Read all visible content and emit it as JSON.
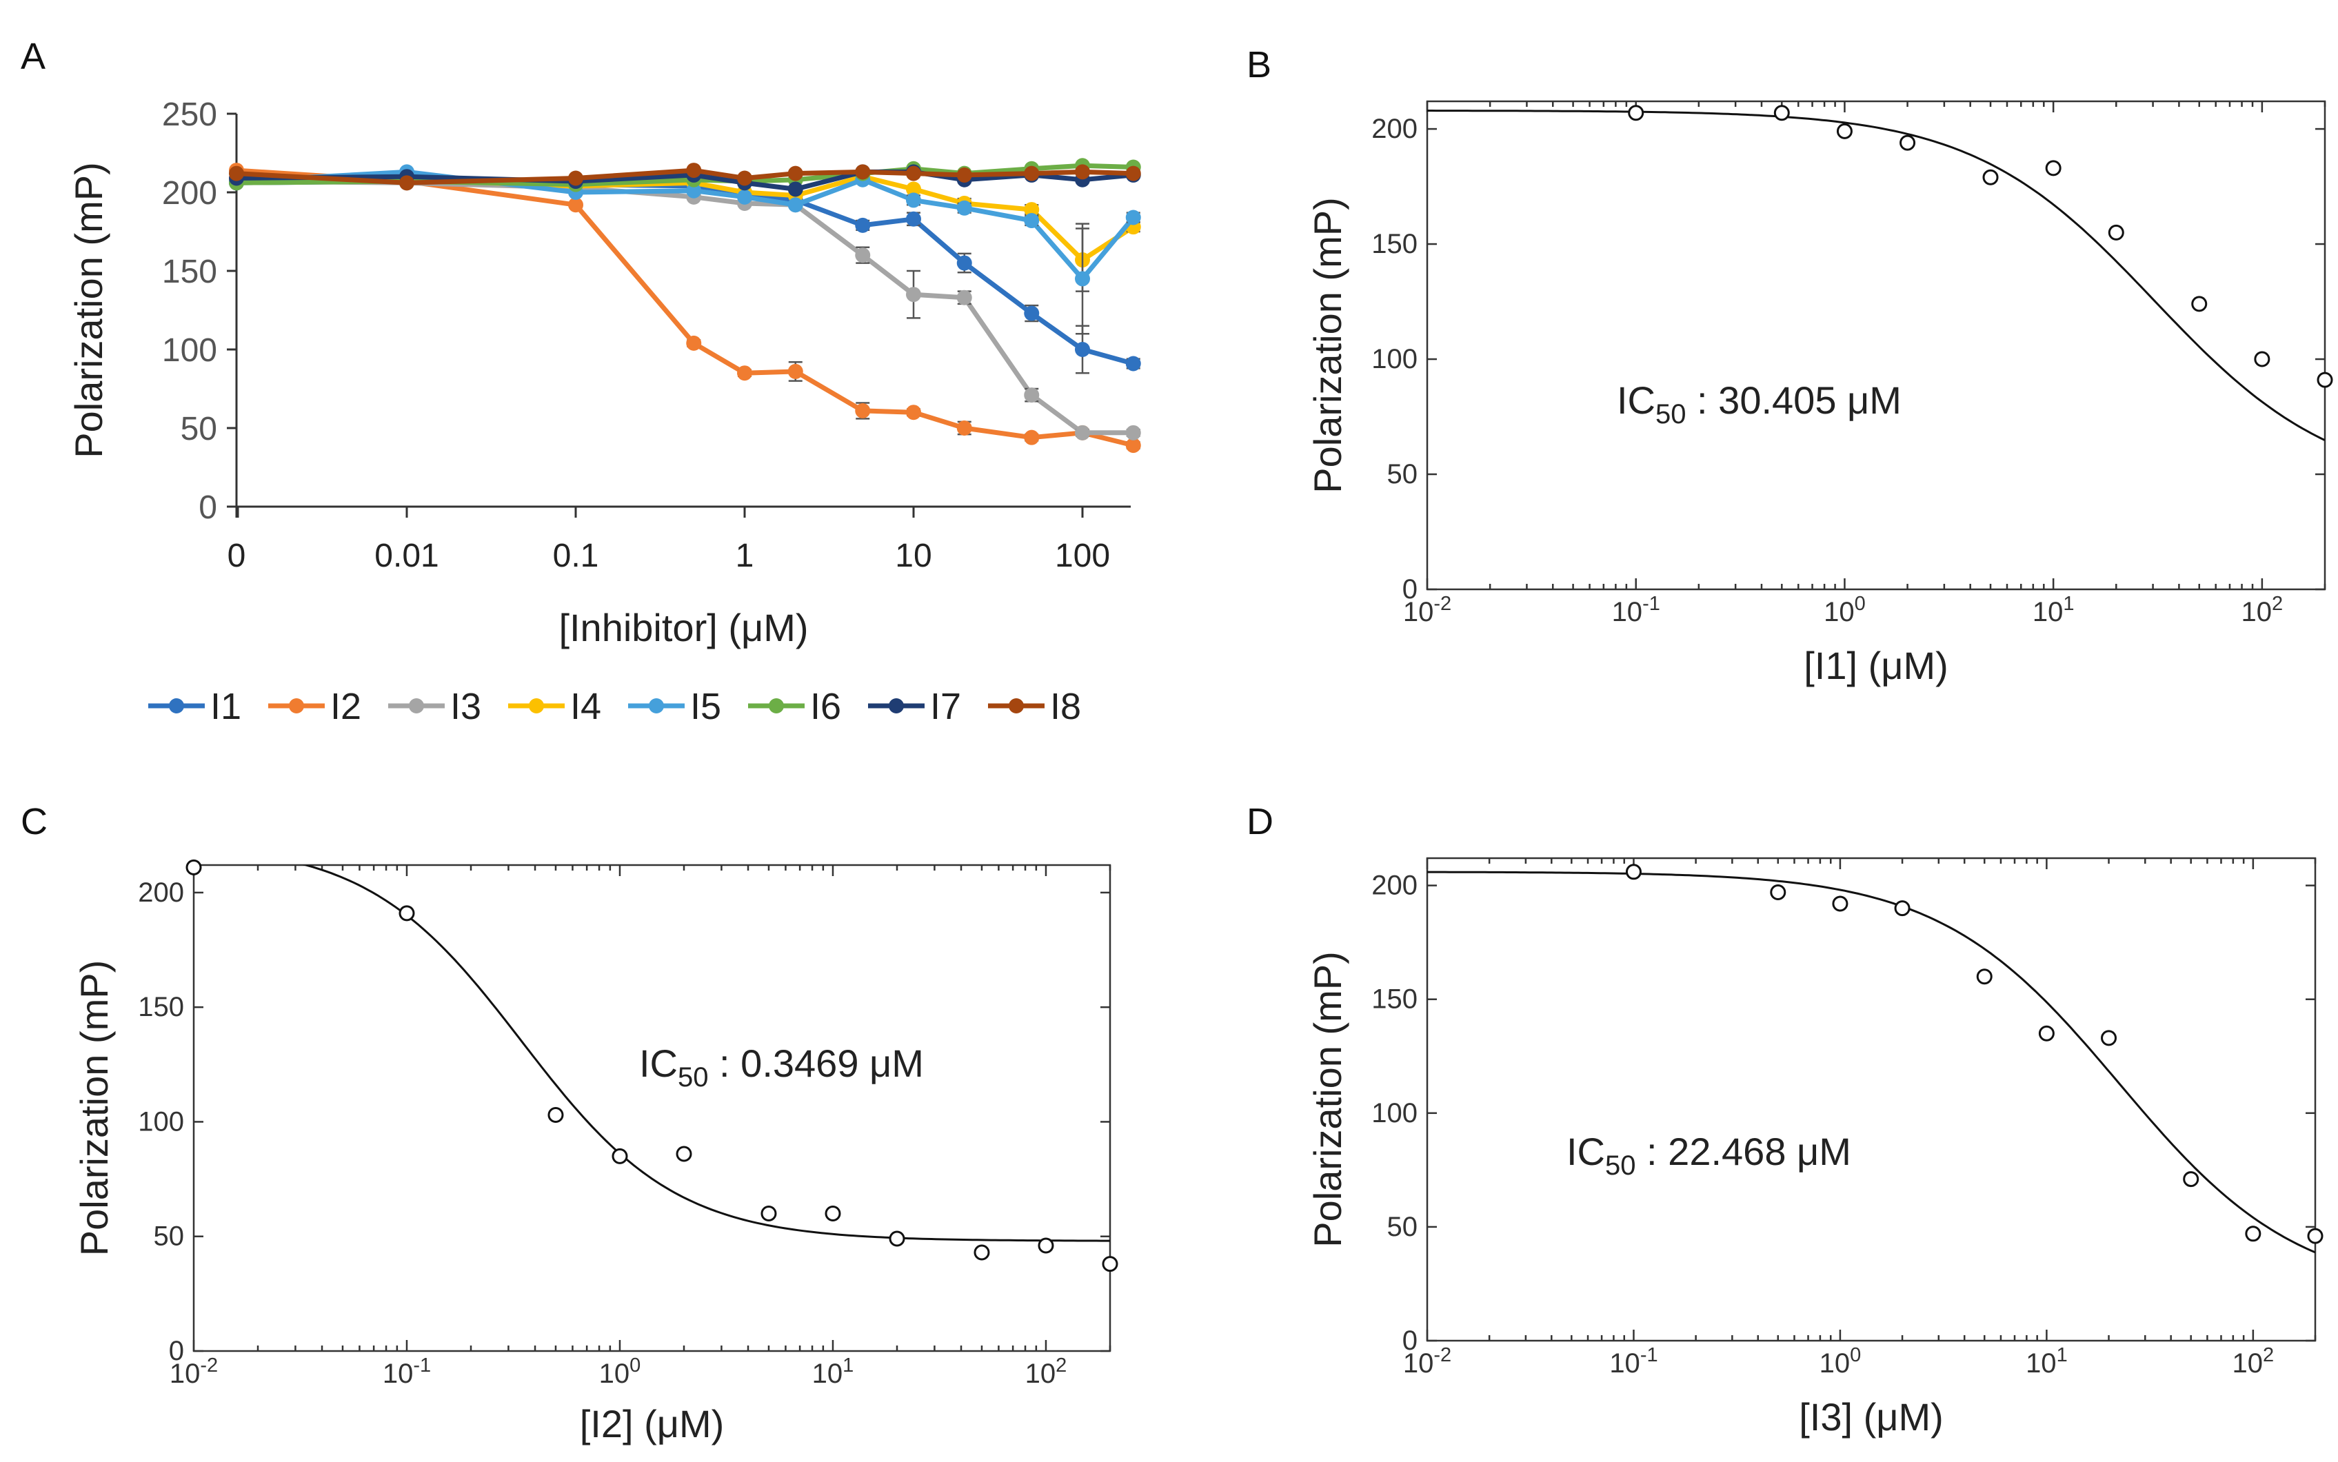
{
  "panels": {
    "a": "A",
    "b": "B",
    "c": "C",
    "d": "D"
  },
  "chart_data": [
    {
      "type": "line",
      "panel": "A",
      "xlabel": "[Inhibitor] (μM)",
      "ylabel": "Polarization (mP)",
      "x_scale": "log-with-zero",
      "x_ticks": [
        "0",
        "0.01",
        "0.1",
        "1",
        "10",
        "100"
      ],
      "x": [
        0,
        0.01,
        0.1,
        0.5,
        1,
        2,
        5,
        10,
        20,
        50,
        100,
        200
      ],
      "ylim": [
        0,
        250
      ],
      "y_ticks": [
        "0",
        "50",
        "100",
        "150",
        "200",
        "250"
      ],
      "legend_position": "bottom",
      "series": [
        {
          "name": "I1",
          "color": "#2f72c0",
          "values": [
            206,
            207,
            205,
            204,
            200,
            195,
            179,
            183,
            155,
            123,
            100,
            91
          ],
          "errors": [
            0,
            0,
            0,
            0,
            0,
            0,
            3,
            4,
            6,
            5,
            15,
            3
          ]
        },
        {
          "name": "I2",
          "color": "#f07c30",
          "values": [
            214,
            207,
            192,
            104,
            85,
            86,
            61,
            60,
            50,
            44,
            47,
            39
          ],
          "errors": [
            0,
            0,
            0,
            2,
            2,
            6,
            5,
            2,
            4,
            2,
            2,
            2
          ]
        },
        {
          "name": "I3",
          "color": "#a5a5a5",
          "values": [
            207,
            206,
            203,
            197,
            193,
            192,
            160,
            135,
            133,
            71,
            47,
            47
          ],
          "errors": [
            0,
            0,
            0,
            0,
            0,
            0,
            5,
            15,
            4,
            4,
            2,
            2
          ]
        },
        {
          "name": "I4",
          "color": "#fcc000",
          "values": [
            208,
            208,
            204,
            206,
            200,
            198,
            210,
            202,
            193,
            189,
            157,
            178
          ],
          "errors": [
            0,
            0,
            0,
            0,
            0,
            0,
            0,
            0,
            3,
            3,
            20,
            3
          ]
        },
        {
          "name": "I5",
          "color": "#45a0db",
          "values": [
            207,
            213,
            200,
            201,
            197,
            192,
            208,
            195,
            190,
            182,
            145,
            184
          ],
          "errors": [
            0,
            0,
            0,
            0,
            0,
            0,
            0,
            3,
            3,
            3,
            35,
            3
          ]
        },
        {
          "name": "I6",
          "color": "#6cae46",
          "values": [
            206,
            207,
            205,
            208,
            207,
            208,
            212,
            215,
            212,
            215,
            217,
            216
          ],
          "errors": [
            0,
            0,
            0,
            0,
            0,
            0,
            0,
            0,
            0,
            0,
            0,
            0
          ]
        },
        {
          "name": "I7",
          "color": "#1f3d73",
          "values": [
            209,
            210,
            207,
            211,
            206,
            202,
            213,
            213,
            208,
            211,
            208,
            211
          ],
          "errors": [
            0,
            0,
            0,
            0,
            0,
            0,
            0,
            0,
            0,
            0,
            0,
            0
          ]
        },
        {
          "name": "I8",
          "color": "#a5460f",
          "values": [
            212,
            206,
            209,
            214,
            209,
            212,
            213,
            212,
            211,
            212,
            213,
            212
          ],
          "errors": [
            0,
            0,
            0,
            0,
            0,
            0,
            0,
            0,
            0,
            0,
            0,
            0
          ]
        }
      ]
    },
    {
      "type": "scatter",
      "panel": "B",
      "xlabel": "[I1] (μM)",
      "ylabel": "Polarization (mP)",
      "x_scale": "log",
      "xlim": [
        0.01,
        200
      ],
      "ylim": [
        0,
        212
      ],
      "y_ticks": [
        "0",
        "50",
        "100",
        "150",
        "200"
      ],
      "x_ticks": [
        {
          "base": "10",
          "exp": "-2"
        },
        {
          "base": "10",
          "exp": "-1"
        },
        {
          "base": "10",
          "exp": "0"
        },
        {
          "base": "10",
          "exp": "1"
        },
        {
          "base": "10",
          "exp": "2"
        }
      ],
      "annotation": {
        "prefix": "IC",
        "sub": "50",
        "value": " : 30.405 μM"
      },
      "x": [
        0.1,
        0.5,
        1,
        2,
        5,
        10,
        20,
        50,
        100,
        200
      ],
      "values": [
        207,
        207,
        199,
        194,
        179,
        183,
        155,
        124,
        100,
        91
      ],
      "fit": {
        "top": 208,
        "bottom": 43,
        "ic50": 30.405,
        "hill": 1.0
      }
    },
    {
      "type": "scatter",
      "panel": "C",
      "xlabel": "[I2] (μM)",
      "ylabel": "Polarization (mP)",
      "x_scale": "log",
      "xlim": [
        0.01,
        200
      ],
      "ylim": [
        0,
        212
      ],
      "y_ticks": [
        "0",
        "50",
        "100",
        "150",
        "200"
      ],
      "x_ticks": [
        {
          "base": "10",
          "exp": "-2"
        },
        {
          "base": "10",
          "exp": "-1"
        },
        {
          "base": "10",
          "exp": "0"
        },
        {
          "base": "10",
          "exp": "1"
        },
        {
          "base": "10",
          "exp": "2"
        }
      ],
      "annotation": {
        "prefix": "IC",
        "sub": "50",
        "value": " : 0.3469 μM"
      },
      "x": [
        0.01,
        0.1,
        0.5,
        1,
        2,
        5,
        10,
        20,
        50,
        100,
        200
      ],
      "values": [
        211,
        191,
        103,
        85,
        86,
        60,
        60,
        49,
        43,
        46,
        38
      ],
      "fit": {
        "top": 222,
        "bottom": 48,
        "ic50": 0.3469,
        "hill": 1.2
      }
    },
    {
      "type": "scatter",
      "panel": "D",
      "xlabel": "[I3] (μM)",
      "ylabel": "Polarization (mP)",
      "x_scale": "log",
      "xlim": [
        0.01,
        200
      ],
      "ylim": [
        0,
        212
      ],
      "y_ticks": [
        "0",
        "50",
        "100",
        "150",
        "200"
      ],
      "x_ticks": [
        {
          "base": "10",
          "exp": "-2"
        },
        {
          "base": "10",
          "exp": "-1"
        },
        {
          "base": "10",
          "exp": "0"
        },
        {
          "base": "10",
          "exp": "1"
        },
        {
          "base": "10",
          "exp": "2"
        }
      ],
      "annotation": {
        "prefix": "IC",
        "sub": "50",
        "value": " : 22.468 μM"
      },
      "x": [
        0.1,
        0.5,
        1,
        2,
        5,
        10,
        20,
        50,
        100,
        200
      ],
      "values": [
        206,
        197,
        192,
        190,
        160,
        135,
        133,
        71,
        47,
        46
      ],
      "fit": {
        "top": 206,
        "bottom": 20,
        "ic50": 22.468,
        "hill": 1.0
      }
    }
  ]
}
